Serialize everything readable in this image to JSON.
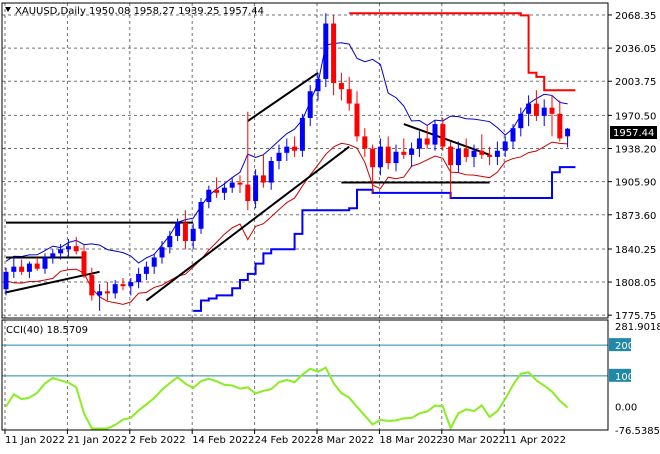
{
  "header": {
    "main_label": "XAUUSD,Daily  1950.08 1958.27 1939.25 1957.44",
    "cci_label": "CCI(40) 18.5709"
  },
  "price_tag": "1957.44",
  "colors": {
    "bull": "#0000ff",
    "bear": "#ff0000",
    "upper_band": "#0000cc",
    "lower_band": "#cc0000",
    "channel_low": "#0000ff",
    "channel_high": "#ff0000",
    "cci": "#88ee22",
    "cci_level": "#2288aa",
    "trend": "#000000"
  },
  "chart_data": {
    "type": "candlestick",
    "symbol": "XAUUSD",
    "timeframe": "Daily",
    "ohlc_header": {
      "open": 1950.08,
      "high": 1958.27,
      "low": 1939.25,
      "close": 1957.44
    },
    "y_ticks": [
      "2068.35",
      "2036.05",
      "2003.75",
      "1970.50",
      "1938.20",
      "1905.90",
      "1873.60",
      "1840.25",
      "1808.05",
      "1775.75"
    ],
    "ylim": [
      1773,
      2080
    ],
    "x_ticks": [
      "11 Jan 2022",
      "21 Jan 2022",
      "2 Feb 2022",
      "14 Feb 2022",
      "24 Feb 2022",
      "8 Mar 2022",
      "18 Mar 2022",
      "30 Mar 2022",
      "11 Apr 2022"
    ],
    "x_tick_index": [
      0,
      8,
      16,
      24,
      32,
      40,
      48,
      56,
      64
    ],
    "candles": [
      [
        1801,
        1822,
        1795,
        1818
      ],
      [
        1818,
        1832,
        1812,
        1823
      ],
      [
        1823,
        1830,
        1815,
        1818
      ],
      [
        1818,
        1828,
        1812,
        1826
      ],
      [
        1826,
        1832,
        1819,
        1821
      ],
      [
        1821,
        1836,
        1816,
        1832
      ],
      [
        1832,
        1840,
        1826,
        1836
      ],
      [
        1836,
        1845,
        1830,
        1840
      ],
      [
        1840,
        1850,
        1832,
        1843
      ],
      [
        1843,
        1852,
        1835,
        1838
      ],
      [
        1838,
        1844,
        1812,
        1815
      ],
      [
        1815,
        1822,
        1790,
        1795
      ],
      [
        1795,
        1806,
        1780,
        1799
      ],
      [
        1799,
        1808,
        1790,
        1797
      ],
      [
        1797,
        1810,
        1792,
        1806
      ],
      [
        1806,
        1812,
        1800,
        1804
      ],
      [
        1804,
        1812,
        1795,
        1808
      ],
      [
        1808,
        1822,
        1802,
        1816
      ],
      [
        1816,
        1828,
        1810,
        1823
      ],
      [
        1823,
        1836,
        1816,
        1832
      ],
      [
        1832,
        1848,
        1826,
        1842
      ],
      [
        1842,
        1858,
        1836,
        1853
      ],
      [
        1853,
        1870,
        1848,
        1866
      ],
      [
        1866,
        1878,
        1840,
        1848
      ],
      [
        1848,
        1865,
        1840,
        1860
      ],
      [
        1860,
        1890,
        1855,
        1886
      ],
      [
        1886,
        1902,
        1880,
        1898
      ],
      [
        1898,
        1910,
        1890,
        1895
      ],
      [
        1895,
        1905,
        1888,
        1900
      ],
      [
        1900,
        1910,
        1895,
        1905
      ],
      [
        1905,
        1912,
        1895,
        1903
      ],
      [
        1903,
        1974,
        1878,
        1887
      ],
      [
        1887,
        1918,
        1880,
        1912
      ],
      [
        1912,
        1932,
        1900,
        1905
      ],
      [
        1905,
        1930,
        1898,
        1926
      ],
      [
        1926,
        1942,
        1918,
        1934
      ],
      [
        1934,
        1948,
        1926,
        1940
      ],
      [
        1940,
        1950,
        1930,
        1936
      ],
      [
        1936,
        1972,
        1930,
        1968
      ],
      [
        1968,
        2000,
        1960,
        1994
      ],
      [
        1994,
        2012,
        1985,
        2006
      ],
      [
        2006,
        2070,
        1998,
        2060
      ],
      [
        2060,
        2068,
        1990,
        2002
      ],
      [
        2002,
        2012,
        1985,
        1996
      ],
      [
        1996,
        2008,
        1975,
        1982
      ],
      [
        1982,
        1994,
        1945,
        1950
      ],
      [
        1950,
        1958,
        1930,
        1938
      ],
      [
        1938,
        1942,
        1895,
        1920
      ],
      [
        1920,
        1948,
        1912,
        1940
      ],
      [
        1940,
        1950,
        1918,
        1924
      ],
      [
        1924,
        1942,
        1916,
        1935
      ],
      [
        1935,
        1948,
        1928,
        1932
      ],
      [
        1932,
        1944,
        1920,
        1938
      ],
      [
        1938,
        1955,
        1930,
        1948
      ],
      [
        1948,
        1960,
        1938,
        1942
      ],
      [
        1942,
        1966,
        1936,
        1962
      ],
      [
        1962,
        1968,
        1936,
        1940
      ],
      [
        1940,
        1945,
        1890,
        1922
      ],
      [
        1922,
        1945,
        1915,
        1938
      ],
      [
        1938,
        1948,
        1925,
        1930
      ],
      [
        1930,
        1942,
        1920,
        1936
      ],
      [
        1936,
        1952,
        1928,
        1932
      ],
      [
        1932,
        1940,
        1922,
        1930
      ],
      [
        1930,
        1945,
        1922,
        1936
      ],
      [
        1936,
        1950,
        1930,
        1945
      ],
      [
        1945,
        1962,
        1938,
        1958
      ],
      [
        1958,
        1978,
        1950,
        1972
      ],
      [
        1972,
        1990,
        1960,
        1982
      ],
      [
        1982,
        1995,
        1965,
        1970
      ],
      [
        1970,
        1986,
        1960,
        1978
      ],
      [
        1978,
        1990,
        1950,
        1972
      ],
      [
        1972,
        1985,
        1945,
        1948
      ],
      [
        1950.08,
        1958.27,
        1939.25,
        1957.44
      ]
    ],
    "cci_ticks": [
      "281.9018",
      "200",
      "100",
      "0.00",
      "-76.5385"
    ],
    "cci_ylim": [
      -76.5385,
      281.9018
    ],
    "cci_levels": [
      200,
      100
    ]
  }
}
